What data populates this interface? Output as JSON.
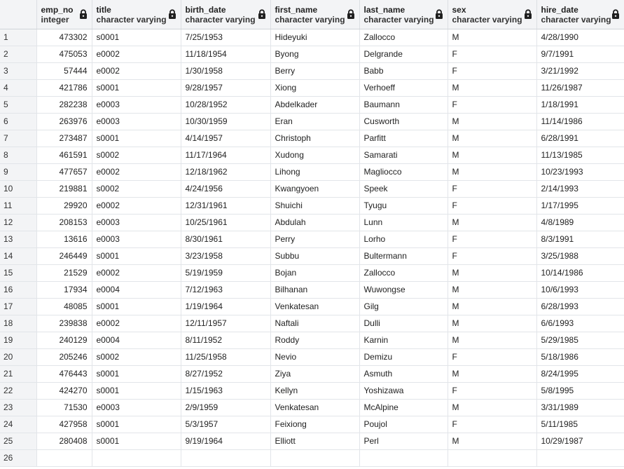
{
  "columns": [
    {
      "name": "",
      "type": ""
    },
    {
      "name": "emp_no",
      "type": "integer",
      "locked": true
    },
    {
      "name": "title",
      "type": "character varying",
      "locked": true
    },
    {
      "name": "birth_date",
      "type": "character varying",
      "locked": true
    },
    {
      "name": "first_name",
      "type": "character varying",
      "locked": true
    },
    {
      "name": "last_name",
      "type": "character varying",
      "locked": true
    },
    {
      "name": "sex",
      "type": "character varying",
      "locked": true
    },
    {
      "name": "hire_date",
      "type": "character varying",
      "locked": true
    }
  ],
  "rows": [
    [
      "1",
      "473302",
      "s0001",
      "7/25/1953",
      "Hideyuki",
      "Zallocco",
      "M",
      "4/28/1990"
    ],
    [
      "2",
      "475053",
      "e0002",
      "11/18/1954",
      "Byong",
      "Delgrande",
      "F",
      "9/7/1991"
    ],
    [
      "3",
      "57444",
      "e0002",
      "1/30/1958",
      "Berry",
      "Babb",
      "F",
      "3/21/1992"
    ],
    [
      "4",
      "421786",
      "s0001",
      "9/28/1957",
      "Xiong",
      "Verhoeff",
      "M",
      "11/26/1987"
    ],
    [
      "5",
      "282238",
      "e0003",
      "10/28/1952",
      "Abdelkader",
      "Baumann",
      "F",
      "1/18/1991"
    ],
    [
      "6",
      "263976",
      "e0003",
      "10/30/1959",
      "Eran",
      "Cusworth",
      "M",
      "11/14/1986"
    ],
    [
      "7",
      "273487",
      "s0001",
      "4/14/1957",
      "Christoph",
      "Parfitt",
      "M",
      "6/28/1991"
    ],
    [
      "8",
      "461591",
      "s0002",
      "11/17/1964",
      "Xudong",
      "Samarati",
      "M",
      "11/13/1985"
    ],
    [
      "9",
      "477657",
      "e0002",
      "12/18/1962",
      "Lihong",
      "Magliocco",
      "M",
      "10/23/1993"
    ],
    [
      "10",
      "219881",
      "s0002",
      "4/24/1956",
      "Kwangyoen",
      "Speek",
      "F",
      "2/14/1993"
    ],
    [
      "11",
      "29920",
      "e0002",
      "12/31/1961",
      "Shuichi",
      "Tyugu",
      "F",
      "1/17/1995"
    ],
    [
      "12",
      "208153",
      "e0003",
      "10/25/1961",
      "Abdulah",
      "Lunn",
      "M",
      "4/8/1989"
    ],
    [
      "13",
      "13616",
      "e0003",
      "8/30/1961",
      "Perry",
      "Lorho",
      "F",
      "8/3/1991"
    ],
    [
      "14",
      "246449",
      "s0001",
      "3/23/1958",
      "Subbu",
      "Bultermann",
      "F",
      "3/25/1988"
    ],
    [
      "15",
      "21529",
      "e0002",
      "5/19/1959",
      "Bojan",
      "Zallocco",
      "M",
      "10/14/1986"
    ],
    [
      "16",
      "17934",
      "e0004",
      "7/12/1963",
      "Bilhanan",
      "Wuwongse",
      "M",
      "10/6/1993"
    ],
    [
      "17",
      "48085",
      "s0001",
      "1/19/1964",
      "Venkatesan",
      "Gilg",
      "M",
      "6/28/1993"
    ],
    [
      "18",
      "239838",
      "e0002",
      "12/11/1957",
      "Naftali",
      "Dulli",
      "M",
      "6/6/1993"
    ],
    [
      "19",
      "240129",
      "e0004",
      "8/11/1952",
      "Roddy",
      "Karnin",
      "M",
      "5/29/1985"
    ],
    [
      "20",
      "205246",
      "s0002",
      "11/25/1958",
      "Nevio",
      "Demizu",
      "F",
      "5/18/1986"
    ],
    [
      "21",
      "476443",
      "s0001",
      "8/27/1952",
      "Ziya",
      "Asmuth",
      "M",
      "8/24/1995"
    ],
    [
      "22",
      "424270",
      "s0001",
      "1/15/1963",
      "Kellyn",
      "Yoshizawa",
      "F",
      "5/8/1995"
    ],
    [
      "23",
      "71530",
      "e0003",
      "2/9/1959",
      "Venkatesan",
      "McAlpine",
      "M",
      "3/31/1989"
    ],
    [
      "24",
      "427958",
      "s0001",
      "5/3/1957",
      "Feixiong",
      "Poujol",
      "F",
      "5/11/1985"
    ],
    [
      "25",
      "280408",
      "s0001",
      "9/19/1964",
      "Elliott",
      "Perl",
      "M",
      "10/29/1987"
    ],
    [
      "26",
      "",
      "",
      "",
      "",
      "",
      "",
      ""
    ]
  ]
}
